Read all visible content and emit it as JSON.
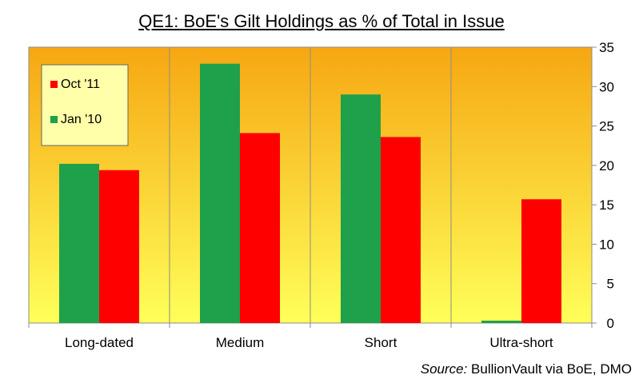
{
  "chart_data": {
    "type": "bar",
    "title": "QE1: BoE's Gilt Holdings as % of Total in Issue",
    "categories": [
      "Long-dated",
      "Medium",
      "Short",
      "Ultra-short"
    ],
    "series": [
      {
        "name": "Jan '10",
        "color": "#1fa04a",
        "values": [
          20.2,
          32.9,
          29.0,
          0.3
        ]
      },
      {
        "name": "Oct '11",
        "color": "#ff0000",
        "values": [
          19.4,
          24.1,
          23.6,
          15.7
        ]
      }
    ],
    "legend_order": [
      "Oct '11",
      "Jan '10"
    ],
    "y_axis_side": "right",
    "ylim": [
      0,
      35
    ],
    "yticks": [
      0,
      5,
      10,
      15,
      20,
      25,
      30,
      35
    ],
    "grid": "vertical category separators",
    "legend_position": "top-left",
    "background": {
      "top": "#f6a712",
      "bottom": "#ffff5a"
    }
  },
  "source": {
    "label": "Source:",
    "text": " BullionVault via BoE, DMO"
  }
}
